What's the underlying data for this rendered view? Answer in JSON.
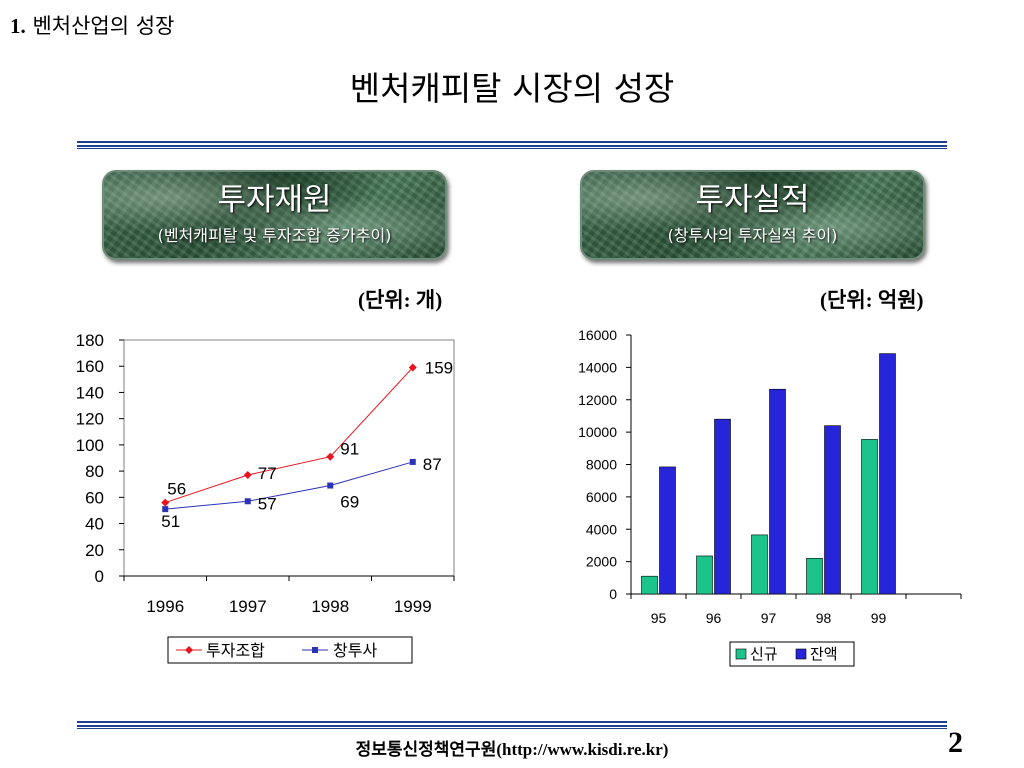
{
  "header": {
    "section_number": "1.",
    "section_title": "벤처산업의 성장",
    "slide_title": "벤처캐피탈 시장의 성장"
  },
  "panels": {
    "left": {
      "title": "투자재원",
      "subtitle": "(벤처캐피탈 및 투자조합 증가추이)"
    },
    "right": {
      "title": "투자실적",
      "subtitle": "(창투사의 투자실적 추이)"
    }
  },
  "units": {
    "left": "(단위: 개)",
    "right": "(단위: 억원)"
  },
  "colors": {
    "rule": "#1f3f8f",
    "line1": "#e8141e",
    "line2": "#2b33b8",
    "bar_new": "#1cc48c",
    "bar_balance": "#2626d8"
  },
  "chart_data": [
    {
      "type": "line",
      "categories": [
        "1996",
        "1997",
        "1998",
        "1999"
      ],
      "series": [
        {
          "name": "투자조합",
          "values": [
            56,
            77,
            91,
            159
          ],
          "labels": [
            "56",
            "77",
            "91",
            "159"
          ]
        },
        {
          "name": "창투사",
          "values": [
            51,
            57,
            69,
            87
          ],
          "labels": [
            "51",
            "57",
            "69",
            "87"
          ]
        }
      ],
      "ylim": [
        0,
        180
      ],
      "yticks": [
        "0",
        "20",
        "40",
        "60",
        "80",
        "100",
        "120",
        "140",
        "160",
        "180"
      ],
      "legend": "bottom",
      "grid": false,
      "unit": "(단위: 개)"
    },
    {
      "type": "bar",
      "categories": [
        "95",
        "96",
        "97",
        "98",
        "99"
      ],
      "series": [
        {
          "name": "신규",
          "values": [
            1100,
            2350,
            3650,
            2200,
            9550
          ]
        },
        {
          "name": "잔액",
          "values": [
            7850,
            10800,
            12650,
            10400,
            14850
          ]
        }
      ],
      "ylim": [
        0,
        16000
      ],
      "yticks": [
        "0",
        "2000",
        "4000",
        "6000",
        "8000",
        "10000",
        "12000",
        "14000",
        "16000"
      ],
      "legend": "bottom",
      "grid": false,
      "unit": "(단위: 억원)"
    }
  ],
  "footer": {
    "organization": "정보통신정책연구원",
    "url": "(http://www.kisdi.re.kr)",
    "page_number": "2"
  }
}
